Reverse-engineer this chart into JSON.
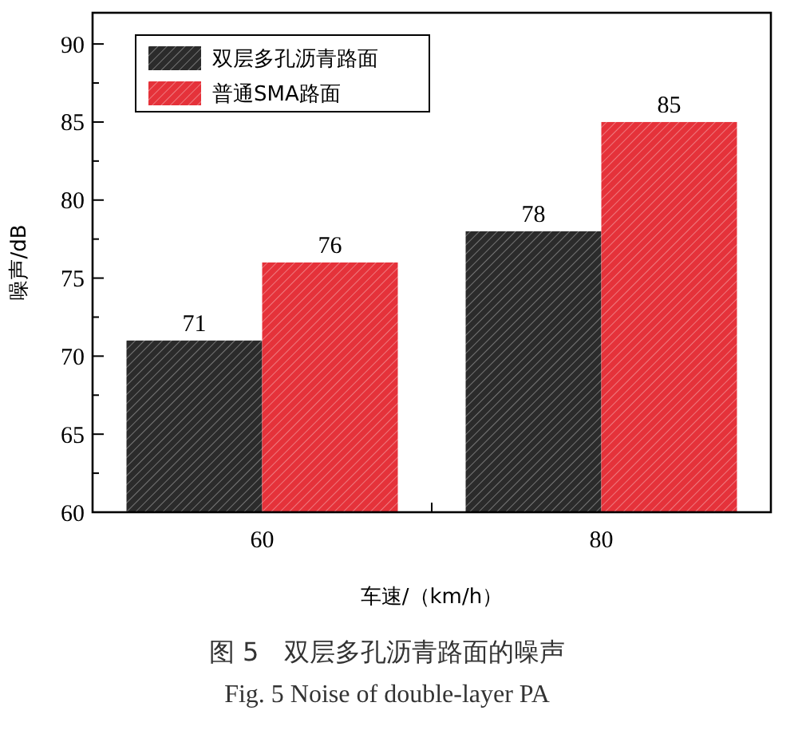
{
  "chart_data": {
    "type": "bar",
    "xlabel": "车速/（km/h）",
    "ylabel": "噪声/dB",
    "categories": [
      "60",
      "80"
    ],
    "series": [
      {
        "name": "双层多孔沥青路面",
        "color": "#2b2b2b",
        "values": [
          71,
          78
        ]
      },
      {
        "name": "普通SMA路面",
        "color": "#e5323a",
        "values": [
          76,
          85
        ]
      }
    ],
    "ylim": [
      60,
      92
    ],
    "yticks": [
      60,
      {
        "value": 62.5,
        "label": null
      },
      65,
      {
        "value": 67.5,
        "label": null
      },
      70,
      {
        "value": 72.5,
        "label": null
      },
      75,
      {
        "value": 77.5,
        "label": null
      },
      80,
      {
        "value": 82.5,
        "label": null
      },
      85,
      {
        "value": 87.5,
        "label": null
      },
      90
    ],
    "data_labels": true,
    "grid": false,
    "legend": "top left",
    "annotations": [
      "图 5　双层多孔沥青路面的噪声",
      "Fig. 5 Noise of double-layer PA"
    ]
  }
}
